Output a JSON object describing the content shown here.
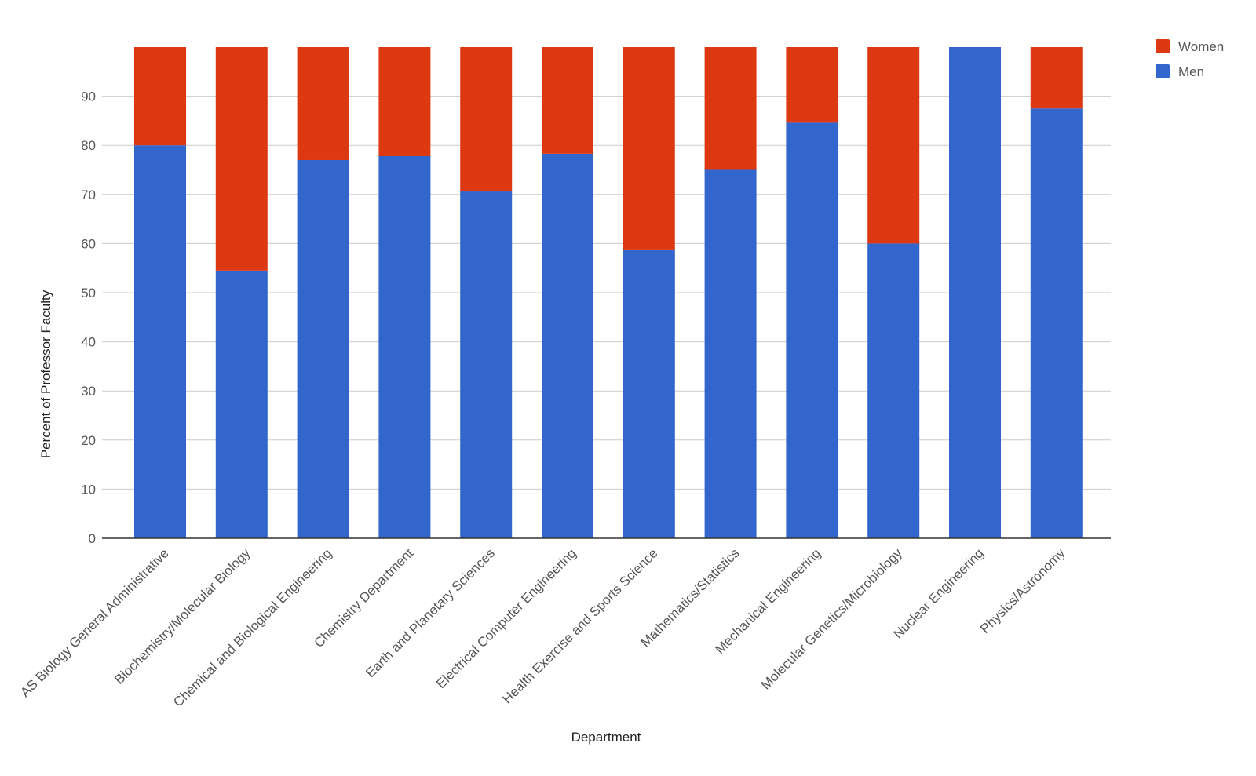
{
  "chart_data": {
    "type": "bar",
    "stacked": true,
    "title": "",
    "xlabel": "Department",
    "ylabel": "Percent of Professor Faculty",
    "ylim": [
      0,
      100
    ],
    "yticks": [
      0,
      10,
      20,
      30,
      40,
      50,
      60,
      70,
      80,
      90
    ],
    "grid": true,
    "legend_position": "top-right",
    "categories": [
      "AS Biology General Administrative",
      "Biochemistry/Molecular Biology",
      "Chemical and Biological Engineering",
      "Chemistry Department",
      "Earth and Planetary Sciences",
      "Electrical Computer Engineering",
      "Health Exercise and Sports Science",
      "Mathematics/Statistics",
      "Mechanical Engineering",
      "Molecular Genetics/Microbiology",
      "Nuclear Engineering",
      "Physics/Astronomy"
    ],
    "series": [
      {
        "name": "Men",
        "color": "#3366cc",
        "values": [
          80,
          54.5,
          77,
          77.8,
          70.6,
          78.3,
          58.8,
          75,
          84.6,
          60,
          100,
          87.5
        ]
      },
      {
        "name": "Women",
        "color": "#dc3912",
        "values": [
          20,
          45.5,
          23,
          22.2,
          29.4,
          21.7,
          41.2,
          25,
          15.4,
          40,
          0,
          12.5
        ]
      }
    ],
    "legend_order": [
      "Women",
      "Men"
    ]
  }
}
